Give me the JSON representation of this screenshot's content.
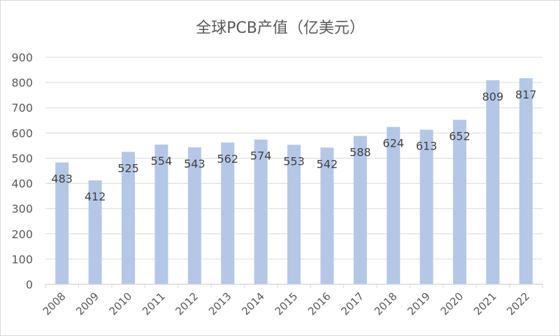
{
  "chart_data": {
    "type": "bar",
    "title": "全球PCB产值（亿美元）",
    "xlabel": "",
    "ylabel": "",
    "categories": [
      "2008",
      "2009",
      "2010",
      "2011",
      "2012",
      "2013",
      "2014",
      "2015",
      "2016",
      "2017",
      "2018",
      "2019",
      "2020",
      "2021",
      "2022"
    ],
    "values": [
      483,
      412,
      525,
      554,
      543,
      562,
      574,
      553,
      542,
      588,
      624,
      613,
      652,
      809,
      817
    ],
    "ylim": [
      0,
      900
    ],
    "yticks": [
      0,
      100,
      200,
      300,
      400,
      500,
      600,
      700,
      800,
      900
    ],
    "grid": true,
    "data_labels": true,
    "colors": {
      "bar": "#b4c7e7",
      "grid": "#d9d9d9",
      "text": "#595959",
      "label": "#404040"
    }
  }
}
